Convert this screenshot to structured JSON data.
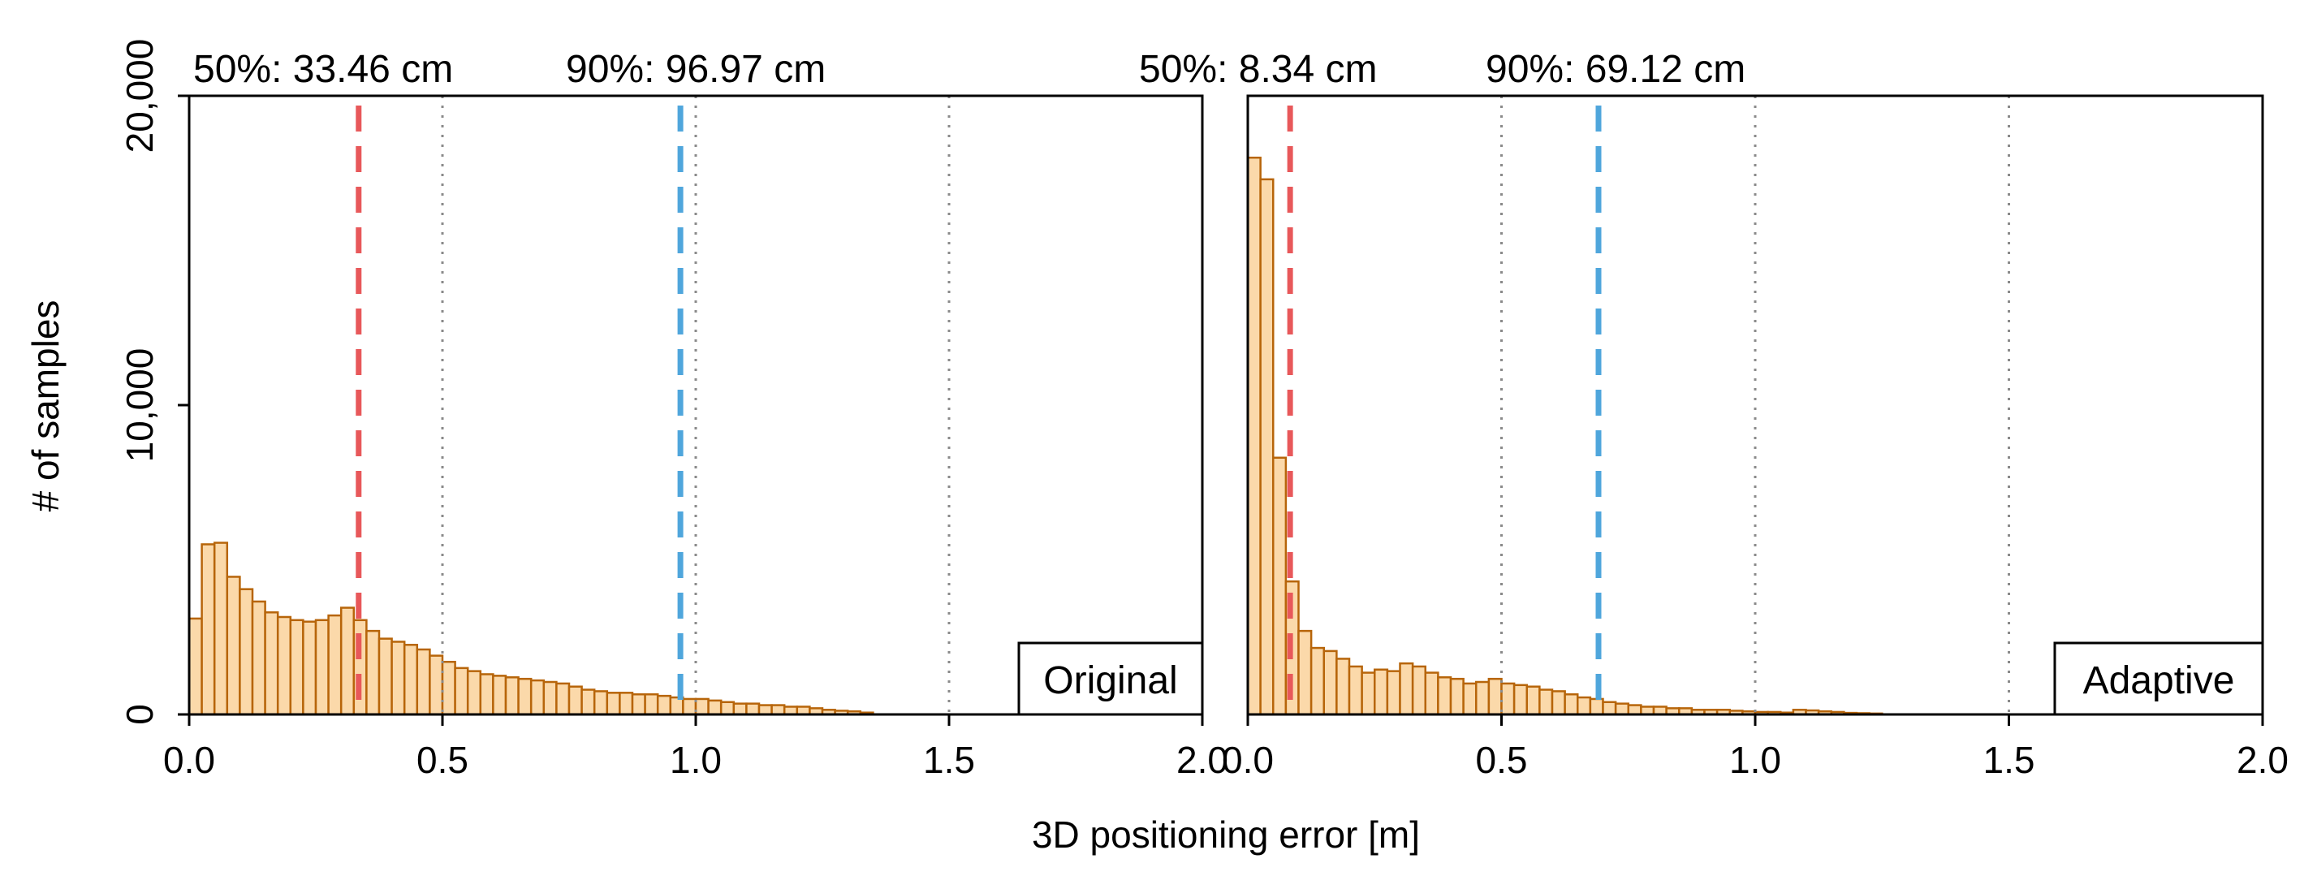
{
  "figure": {
    "ylabel": "# of samples",
    "xlabel": "3D positioning error [m]",
    "yticks": [
      {
        "value": 0,
        "label": "0"
      },
      {
        "value": 10000,
        "label": "10,000"
      },
      {
        "value": 20000,
        "label": "20,000"
      }
    ],
    "xticks": [
      {
        "value": 0.0,
        "label": "0.0"
      },
      {
        "value": 0.5,
        "label": "0.5"
      },
      {
        "value": 1.0,
        "label": "1.0"
      },
      {
        "value": 1.5,
        "label": "1.5"
      },
      {
        "value": 2.0,
        "label": "2.0"
      }
    ]
  },
  "colors": {
    "bar_fill": "#fbd9aa",
    "bar_edge": "#b7650a",
    "median_line": "#e8585a",
    "p90_line": "#4fa6dc",
    "grid_line": "#8a8a8a",
    "axis": "#000000"
  },
  "chart_data": [
    {
      "type": "bar",
      "name": "Original",
      "panel_label": "Original",
      "xlim": [
        0,
        2.0
      ],
      "ylim": [
        0,
        20000
      ],
      "bin_width": 0.025,
      "bin_start": 0.0,
      "values": [
        3100,
        5500,
        5550,
        4450,
        4050,
        3650,
        3300,
        3150,
        3050,
        3000,
        3050,
        3200,
        3450,
        3050,
        2700,
        2450,
        2350,
        2250,
        2100,
        1900,
        1700,
        1500,
        1400,
        1300,
        1250,
        1200,
        1150,
        1100,
        1050,
        1000,
        900,
        800,
        750,
        700,
        700,
        650,
        650,
        600,
        550,
        500,
        500,
        450,
        400,
        350,
        350,
        300,
        300,
        250,
        250,
        200,
        150,
        120,
        100,
        60
      ],
      "median": {
        "value": 0.3346,
        "label": "50%: 33.46 cm"
      },
      "p90": {
        "value": 0.9697,
        "label": "90%: 96.97 cm"
      },
      "gridlines_x": [
        0.5,
        1.0,
        1.5
      ]
    },
    {
      "type": "bar",
      "name": "Adaptive",
      "panel_label": "Adaptive",
      "xlim": [
        0,
        2.0
      ],
      "ylim": [
        0,
        20000
      ],
      "bin_width": 0.025,
      "bin_start": 0.0,
      "values": [
        18000,
        17300,
        8300,
        4300,
        2700,
        2150,
        2050,
        1800,
        1550,
        1350,
        1450,
        1400,
        1650,
        1550,
        1350,
        1200,
        1150,
        1000,
        1050,
        1150,
        1000,
        950,
        900,
        800,
        750,
        650,
        550,
        500,
        400,
        350,
        300,
        250,
        250,
        200,
        200,
        150,
        150,
        150,
        120,
        100,
        80,
        80,
        60,
        150,
        130,
        100,
        80,
        50,
        40,
        30
      ],
      "median": {
        "value": 0.0834,
        "label": "50%: 8.34 cm"
      },
      "p90": {
        "value": 0.6912,
        "label": "90%: 69.12 cm"
      },
      "gridlines_x": [
        0.5,
        1.0,
        1.5
      ]
    }
  ]
}
